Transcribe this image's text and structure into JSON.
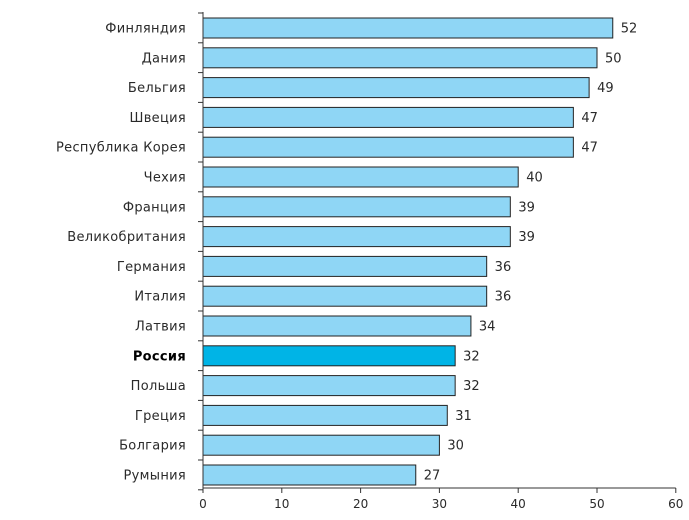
{
  "chart_data": {
    "type": "bar",
    "orientation": "horizontal",
    "title": "",
    "xlabel": "",
    "ylabel": "",
    "xlim": [
      0,
      60
    ],
    "xticks": [
      0,
      10,
      20,
      30,
      40,
      50,
      60
    ],
    "grid": false,
    "legend": "none",
    "categories": [
      "Финляндия",
      "Дания",
      "Бельгия",
      "Швеция",
      "Республика Корея",
      "Чехия",
      "Франция",
      "Великобритания",
      "Германия",
      "Италия",
      "Латвия",
      "Россия",
      "Польша",
      "Греция",
      "Болгария",
      "Румыния"
    ],
    "values": [
      52,
      50,
      49,
      47,
      47,
      40,
      39,
      39,
      36,
      36,
      34,
      32,
      32,
      31,
      30,
      27
    ],
    "highlight": "Россия",
    "colors": {
      "bar": "#8fd6f5",
      "bar_highlight": "#00b4e6",
      "bar_border": "#222222",
      "axis": "#333333"
    }
  }
}
